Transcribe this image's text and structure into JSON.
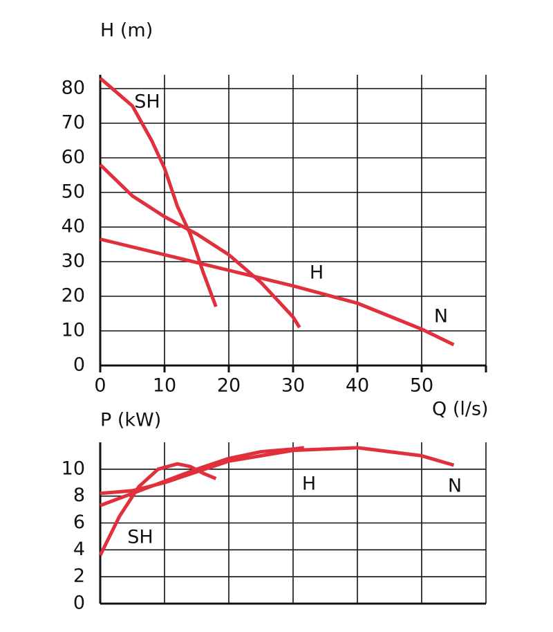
{
  "chart_data": [
    {
      "type": "line",
      "y_label": "H (m)",
      "x_label": "Q (l/s)",
      "xlim": [
        0,
        60
      ],
      "xticks": [
        0,
        10,
        20,
        30,
        40,
        50
      ],
      "ylim": [
        0,
        84
      ],
      "yticks": [
        0,
        10,
        20,
        30,
        40,
        50,
        60,
        70,
        80
      ],
      "grid": true,
      "series": [
        {
          "name": "SH",
          "color": "#e0303c",
          "x": [
            0,
            5,
            8,
            10,
            12,
            14,
            16,
            18
          ],
          "values": [
            83,
            75,
            65,
            57,
            46,
            38,
            27,
            17
          ]
        },
        {
          "name": "H",
          "color": "#e0303c",
          "x": [
            0,
            5,
            10,
            15,
            20,
            25,
            30,
            31
          ],
          "values": [
            58,
            49,
            43,
            38,
            32,
            24,
            14,
            11
          ]
        },
        {
          "name": "N",
          "color": "#e0303c",
          "x": [
            0,
            10,
            20,
            30,
            40,
            50,
            55
          ],
          "values": [
            36.5,
            32,
            27.5,
            23,
            18,
            10.5,
            6
          ]
        }
      ]
    },
    {
      "type": "line",
      "y_label": "P (kW)",
      "xlim": [
        0,
        60
      ],
      "ylim": [
        0,
        12
      ],
      "yticks": [
        0,
        2,
        4,
        6,
        8,
        10
      ],
      "grid": true,
      "series": [
        {
          "name": "SH",
          "color": "#e0303c",
          "x": [
            0,
            3,
            6,
            9,
            12,
            14,
            16,
            18
          ],
          "values": [
            3.6,
            6.5,
            8.7,
            10,
            10.4,
            10.2,
            9.7,
            9.3
          ]
        },
        {
          "name": "H",
          "color": "#e0303c",
          "x": [
            0,
            5,
            10,
            15,
            20,
            25,
            30,
            31.7
          ],
          "values": [
            7.3,
            8.2,
            9.1,
            10,
            10.8,
            11.3,
            11.5,
            11.6
          ]
        },
        {
          "name": "N",
          "color": "#e0303c",
          "x": [
            0,
            5,
            10,
            20,
            30,
            40,
            50,
            55
          ],
          "values": [
            8.2,
            8.4,
            9,
            10.6,
            11.4,
            11.6,
            11,
            10.3
          ]
        }
      ]
    }
  ]
}
